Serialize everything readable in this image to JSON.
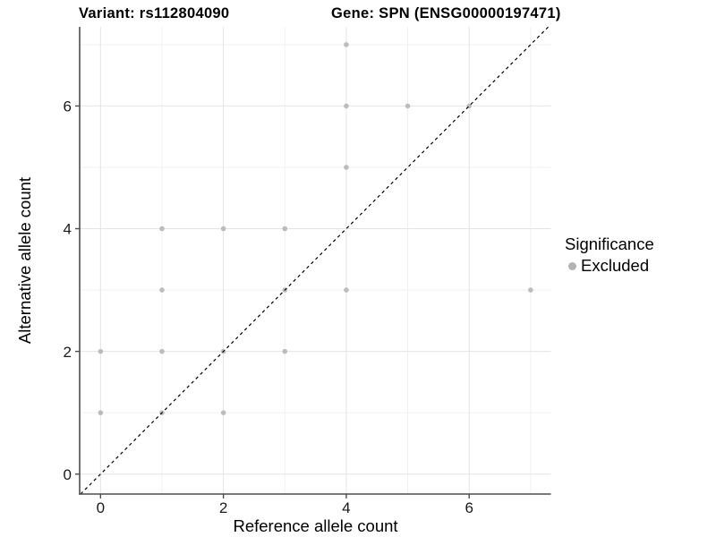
{
  "chart_data": {
    "type": "scatter",
    "titles": {
      "variant": "Variant: rs112804090",
      "gene": "Gene: SPN (ENSG00000197471)"
    },
    "xlabel": "Reference allele count",
    "ylabel": "Alternative allele count",
    "xlim": [
      -0.34,
      7.33
    ],
    "ylim": [
      -0.325,
      7.29
    ],
    "x_ticks": [
      0,
      2,
      4,
      6
    ],
    "y_ticks": [
      0,
      2,
      4,
      6
    ],
    "x_minor": [
      1,
      3,
      5,
      7
    ],
    "y_minor": [
      1,
      3,
      5,
      7
    ],
    "grid": true,
    "series": [
      {
        "name": "Excluded",
        "color": "#bcbcbc",
        "points": [
          [
            0,
            1
          ],
          [
            0,
            2
          ],
          [
            1,
            1
          ],
          [
            1,
            2
          ],
          [
            1,
            3
          ],
          [
            1,
            4
          ],
          [
            2,
            1
          ],
          [
            2,
            2
          ],
          [
            2,
            4
          ],
          [
            3,
            2
          ],
          [
            3,
            3
          ],
          [
            3,
            4
          ],
          [
            4,
            3
          ],
          [
            4,
            5
          ],
          [
            4,
            6
          ],
          [
            4,
            7
          ],
          [
            5,
            6
          ],
          [
            6,
            6
          ],
          [
            7,
            3
          ]
        ]
      }
    ],
    "identity_line": {
      "style": "dashed",
      "slope": 1,
      "intercept": 0
    },
    "legend": {
      "title": "Significance",
      "position": "right",
      "items": [
        {
          "label": "Excluded",
          "color": "#b3b3b3"
        }
      ]
    },
    "colors": {
      "point": "#bcbcbc",
      "grid_major": "#e4e4e4",
      "grid_minor": "#f0f0f0",
      "axis": "#4d4d4d",
      "identity_line": "#000000",
      "tick_text": "#1a1a1a"
    }
  }
}
